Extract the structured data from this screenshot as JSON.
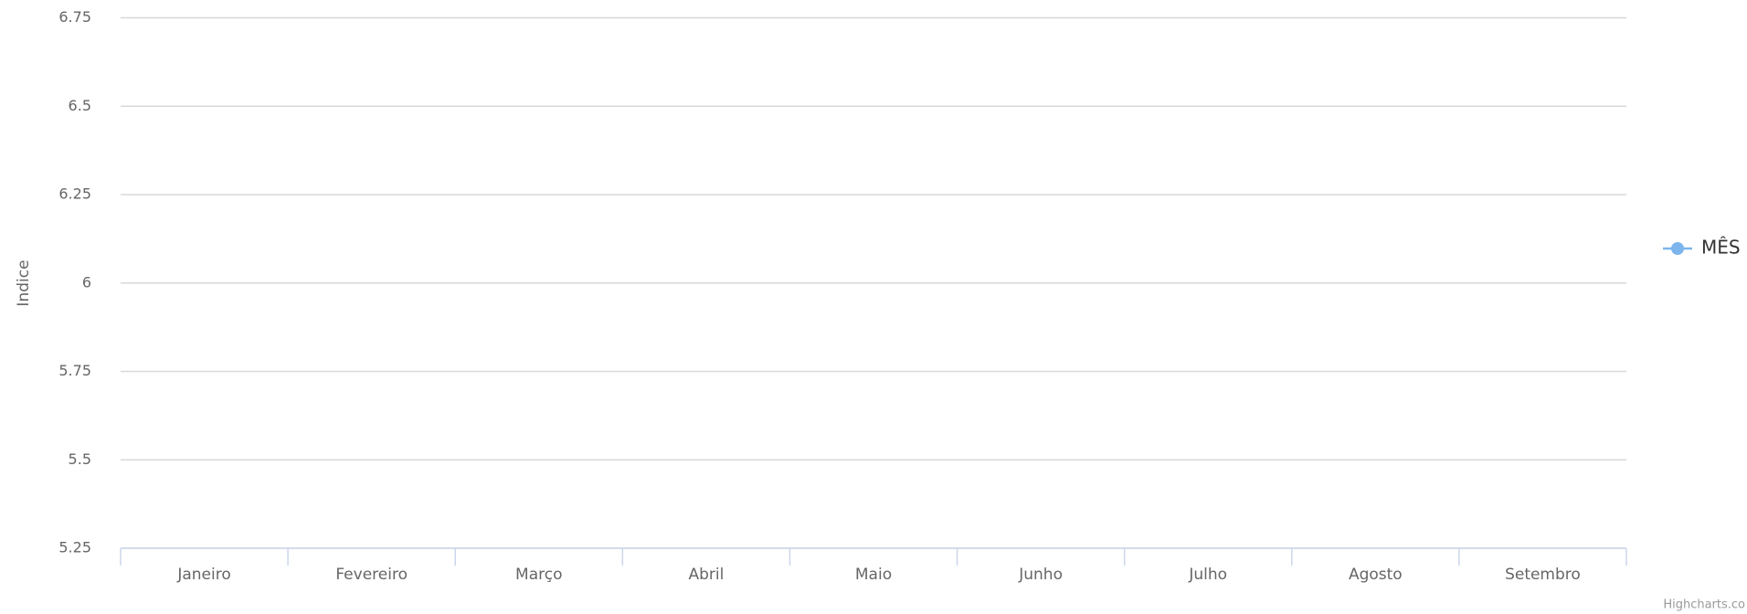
{
  "chart_data": {
    "type": "line",
    "y_axis_label": "Indice",
    "categories": [
      "Janeiro",
      "Fevereiro",
      "Março",
      "Abril",
      "Maio",
      "Junho",
      "Julho",
      "Agosto",
      "Setembro"
    ],
    "series": [
      {
        "name": "MÊS",
        "color": "#7cb5ec",
        "values": [
          null,
          null,
          null,
          null,
          null,
          null,
          null,
          null,
          null
        ]
      }
    ],
    "ylim": [
      5.25,
      6.75
    ],
    "yticks": [
      5.25,
      5.5,
      5.75,
      6,
      6.25,
      6.5,
      6.75
    ],
    "grid": true,
    "legend": "right",
    "credits": "Highcharts.co"
  }
}
